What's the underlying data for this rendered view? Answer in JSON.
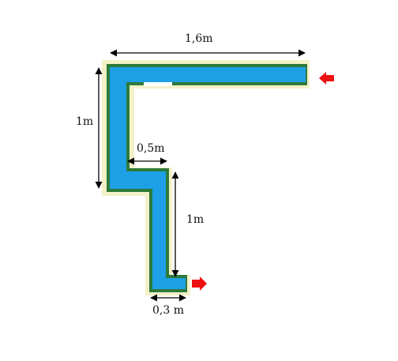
{
  "dimensions": {
    "top_width": "1,6m",
    "left_height": "1m",
    "step_width": "0,5m",
    "lower_height": "1m",
    "bottom_width": "0,3 m"
  },
  "colors": {
    "water": "#1ea0e6",
    "border": "#2e7a3a",
    "outline_glow": "#f3f1c8",
    "flow_arrow": "#ee1111",
    "dimension_line": "#000000"
  },
  "flow_arrows": {
    "inlet_icon": "arrow-left-icon",
    "outlet_icon": "arrow-right-icon"
  }
}
